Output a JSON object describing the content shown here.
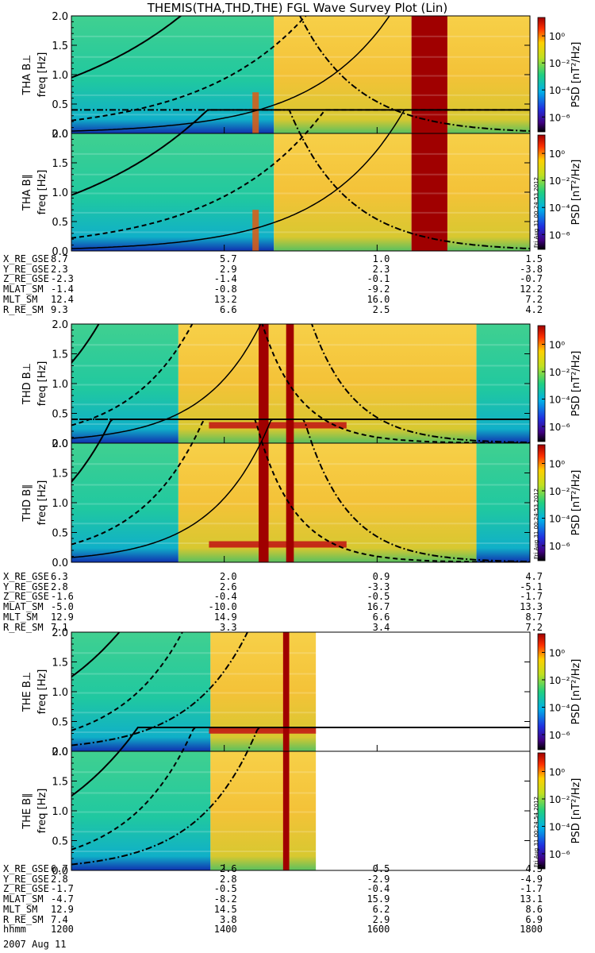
{
  "title": "THEMIS(THA,THD,THE) FGL Wave Survey Plot (Lin)",
  "colors": {
    "background": "#ffffff",
    "axis": "#000000",
    "saturated": "#a00000"
  },
  "colorbar": {
    "label": "PSD [nT²/Hz]",
    "ticks": [
      "10⁰",
      "10⁻²",
      "10⁻⁴",
      "10⁻⁶"
    ]
  },
  "stamps": [
    "Fri Aug 31 00:24:53 2012",
    "Fri Aug 31 00:24:53 2012",
    "Fri Aug 31 00:24:54 2012"
  ],
  "chart_data": {
    "type": "heatmap",
    "x_units": "hhmm",
    "xlim": [
      1200,
      1800
    ],
    "ylim": [
      0,
      2.0
    ],
    "yticks": [
      "0.0",
      "0.5",
      "1.0",
      "1.5",
      "2.0"
    ],
    "panels": [
      {
        "name": "THA B⊥",
        "ylabel": "THA B⊥",
        "yunit": "freq [Hz]",
        "data_end": 1800,
        "regions": [
          [
            1200,
            1465,
            "low"
          ],
          [
            1465,
            1645,
            "high"
          ],
          [
            1645,
            1692,
            "sat"
          ],
          [
            1692,
            1800,
            "high"
          ]
        ],
        "vbands": [],
        "hbands": [],
        "spike": 1440
      },
      {
        "name": "THA B∥",
        "ylabel": "THA B∥",
        "yunit": "freq [Hz]",
        "data_end": 1800,
        "regions": [
          [
            1200,
            1465,
            "low"
          ],
          [
            1465,
            1645,
            "high"
          ],
          [
            1645,
            1692,
            "sat"
          ],
          [
            1692,
            1800,
            "high"
          ]
        ],
        "vbands": [],
        "hbands": [],
        "spike": 1440
      },
      {
        "name": "THD B⊥",
        "ylabel": "THD B⊥",
        "yunit": "freq [Hz]",
        "data_end": 1800,
        "regions": [
          [
            1200,
            1340,
            "low"
          ],
          [
            1340,
            1730,
            "high"
          ],
          [
            1730,
            1800,
            "low"
          ]
        ],
        "vbands": [
          [
            1445,
            1458
          ],
          [
            1481,
            1491
          ]
        ],
        "hbands": [
          0.3
        ],
        "spike": null
      },
      {
        "name": "THD B∥",
        "ylabel": "THD B∥",
        "yunit": "freq [Hz]",
        "data_end": 1800,
        "regions": [
          [
            1200,
            1340,
            "low"
          ],
          [
            1340,
            1730,
            "high"
          ],
          [
            1730,
            1800,
            "low"
          ]
        ],
        "vbands": [
          [
            1445,
            1458
          ],
          [
            1481,
            1491
          ]
        ],
        "hbands": [
          0.3
        ],
        "spike": null
      },
      {
        "name": "THE B⊥",
        "ylabel": "THE B⊥",
        "yunit": "freq [Hz]",
        "data_end": 1520,
        "regions": [
          [
            1200,
            1382,
            "low"
          ],
          [
            1382,
            1520,
            "high"
          ]
        ],
        "vbands": [
          [
            1477,
            1485
          ]
        ],
        "hbands": [
          0.35
        ],
        "spike": null
      },
      {
        "name": "THE B∥",
        "ylabel": "THE B∥",
        "yunit": "freq [Hz]",
        "data_end": 1520,
        "regions": [
          [
            1200,
            1382,
            "low"
          ],
          [
            1382,
            1520,
            "high"
          ]
        ],
        "vbands": [
          [
            1477,
            1485
          ]
        ],
        "hbands": [],
        "spike": null
      }
    ],
    "ephemeris": [
      {
        "probe": "THA",
        "rows": [
          {
            "label": "X_RE_GSE",
            "values": [
              "8.7",
              "5.7",
              "1.0",
              "1.5"
            ]
          },
          {
            "label": "Y_RE_GSE",
            "values": [
              "2.3",
              "2.9",
              "2.3",
              "-3.8"
            ]
          },
          {
            "label": "Z_RE_GSE",
            "values": [
              "-2.3",
              "-1.4",
              "-0.1",
              "-0.7"
            ]
          },
          {
            "label": "MLAT_SM",
            "values": [
              "-1.4",
              "-0.8",
              "-9.2",
              "12.2"
            ]
          },
          {
            "label": "MLT_SM",
            "values": [
              "12.4",
              "13.2",
              "16.0",
              "7.2"
            ]
          },
          {
            "label": "R_RE_SM",
            "values": [
              "9.3",
              "6.6",
              "2.5",
              "4.2"
            ]
          }
        ]
      },
      {
        "probe": "THD",
        "rows": [
          {
            "label": "X_RE_GSE",
            "values": [
              "6.3",
              "2.0",
              "0.9",
              "4.7"
            ]
          },
          {
            "label": "Y_RE_GSE",
            "values": [
              "2.8",
              "2.6",
              "-3.3",
              "-5.1"
            ]
          },
          {
            "label": "Z_RE_GSE",
            "values": [
              "-1.6",
              "-0.4",
              "-0.5",
              "-1.7"
            ]
          },
          {
            "label": "MLAT_SM",
            "values": [
              "-5.0",
              "-10.0",
              "16.7",
              "13.3"
            ]
          },
          {
            "label": "MLT_SM",
            "values": [
              "12.9",
              "14.9",
              "6.6",
              "8.7"
            ]
          },
          {
            "label": "R_RE_SM",
            "values": [
              "7.1",
              "3.3",
              "3.4",
              "7.2"
            ]
          }
        ]
      },
      {
        "probe": "THE",
        "rows": [
          {
            "label": "X_RE_GSE",
            "values": [
              "6.7",
              "2.6",
              "0.5",
              "4.5"
            ]
          },
          {
            "label": "Y_RE_GSE",
            "values": [
              "2.8",
              "2.8",
              "-2.9",
              "-4.9"
            ]
          },
          {
            "label": "Z_RE_GSE",
            "values": [
              "-1.7",
              "-0.5",
              "-0.4",
              "-1.7"
            ]
          },
          {
            "label": "MLAT_SM",
            "values": [
              "-4.7",
              "-8.2",
              "15.9",
              "13.1"
            ]
          },
          {
            "label": "MLT_SM",
            "values": [
              "12.9",
              "14.5",
              "6.2",
              "8.6"
            ]
          },
          {
            "label": "R_RE_SM",
            "values": [
              "7.4",
              "3.8",
              "2.9",
              "6.9"
            ]
          },
          {
            "label": "hhmm",
            "values": [
              "1200",
              "1400",
              "1600",
              "1800"
            ]
          }
        ]
      }
    ],
    "date_label": "2007 Aug 11"
  }
}
